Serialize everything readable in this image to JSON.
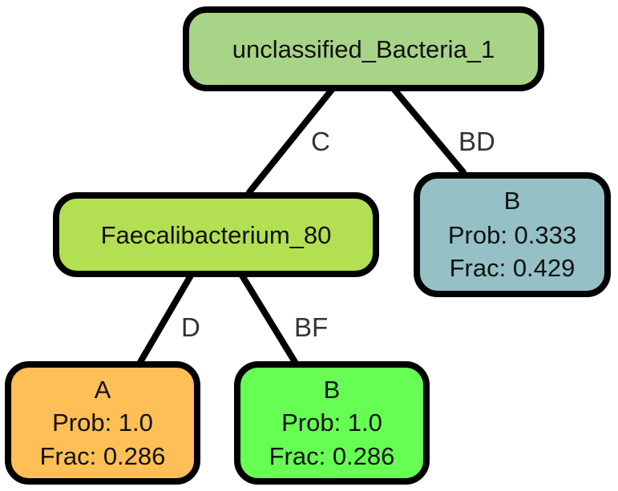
{
  "diagram": {
    "type": "decision-tree",
    "nodes": [
      {
        "id": "root",
        "lines": [
          "unclassified_Bacteria_1"
        ],
        "fill": "#a8d488"
      },
      {
        "id": "faecali",
        "lines": [
          "Faecalibacterium_80"
        ],
        "fill": "#b3e052"
      },
      {
        "id": "leafBD",
        "lines": [
          "B",
          "Prob: 0.333",
          "Frac: 0.429"
        ],
        "fill": "#95c0c6"
      },
      {
        "id": "leafA",
        "lines": [
          "A",
          "Prob: 1.0",
          "Frac: 0.286"
        ],
        "fill": "#febf56"
      },
      {
        "id": "leafBF",
        "lines": [
          "B",
          "Prob: 1.0",
          "Frac: 0.286"
        ],
        "fill": "#66fe53"
      }
    ],
    "edges": [
      {
        "from": "root",
        "to": "faecali",
        "label": "C"
      },
      {
        "from": "root",
        "to": "leafBD",
        "label": "BD"
      },
      {
        "from": "faecali",
        "to": "leafA",
        "label": "D"
      },
      {
        "from": "faecali",
        "to": "leafBF",
        "label": "BF"
      }
    ]
  }
}
